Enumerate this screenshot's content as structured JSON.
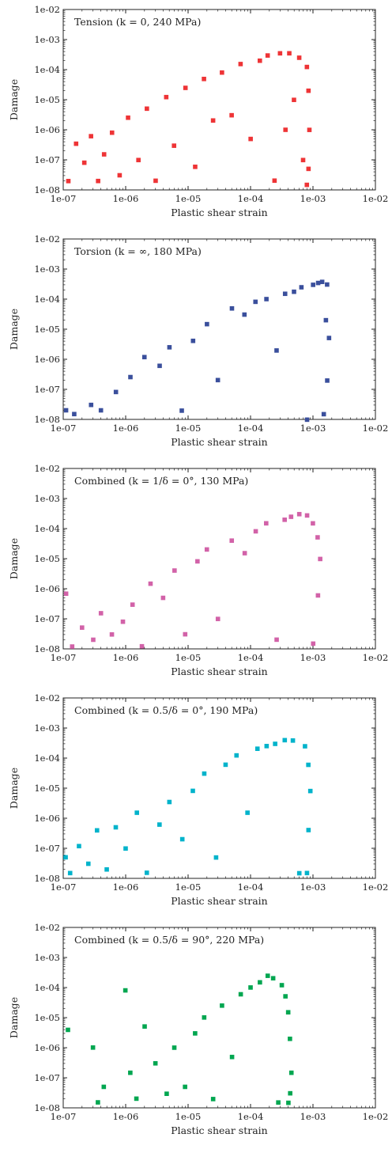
{
  "chart_data": [
    {
      "type": "scatter",
      "title": "Tension (k = 0, 240 MPa)",
      "xlabel": "Plastic shear strain",
      "ylabel": "Damage",
      "xscale": "log",
      "yscale": "log",
      "xlim": [
        1e-07,
        0.01
      ],
      "ylim": [
        1e-08,
        0.01
      ],
      "xticks": [
        "1e-07",
        "1e-06",
        "1e-05",
        "1e-04",
        "1e-03",
        "1e-02"
      ],
      "yticks": [
        "1e-08",
        "1e-07",
        "1e-06",
        "1e-05",
        "1e-04",
        "1e-03",
        "1e-02"
      ],
      "grid": false,
      "legend": "none",
      "color": "#ee3436",
      "marker": "square",
      "series": [
        {
          "x": [
            1.2e-07,
            1.6e-07,
            2.2e-07,
            2.8e-07,
            3.6e-07,
            4.5e-07,
            6e-07,
            8e-07,
            1.1e-06,
            1.6e-06,
            2.2e-06,
            3e-06,
            4.5e-06,
            6e-06,
            9e-06,
            1.3e-05,
            1.8e-05,
            2.5e-05,
            3.5e-05,
            5e-05,
            7e-05,
            0.0001,
            0.00014,
            0.00019,
            0.00024,
            0.0003,
            0.00036,
            0.00042,
            0.0005,
            0.0006,
            0.0007,
            0.0008,
            0.00085,
            0.00087,
            0.00085,
            0.0008
          ],
          "y": [
            2e-08,
            3.5e-07,
            8e-08,
            6e-07,
            2e-08,
            1.5e-07,
            8e-07,
            3e-08,
            2.5e-06,
            1e-07,
            5e-06,
            2e-08,
            1.2e-05,
            3e-07,
            2.5e-05,
            6e-08,
            5e-05,
            2e-06,
            8e-05,
            3e-06,
            0.00015,
            5e-07,
            0.0002,
            0.0003,
            2e-08,
            0.00035,
            1e-06,
            0.00035,
            1e-05,
            0.00025,
            1e-07,
            0.00012,
            2e-05,
            1e-06,
            5e-08,
            1.5e-08
          ]
        }
      ]
    },
    {
      "type": "scatter",
      "title": "Torsion (k = ∞, 180 MPa)",
      "xlabel": "Plastic shear strain",
      "ylabel": "Damage",
      "xscale": "log",
      "yscale": "log",
      "xlim": [
        1e-07,
        0.01
      ],
      "ylim": [
        1e-08,
        0.01
      ],
      "xticks": [
        "1e-07",
        "1e-06",
        "1e-05",
        "1e-04",
        "1e-03",
        "1e-02"
      ],
      "yticks": [
        "1e-08",
        "1e-07",
        "1e-06",
        "1e-05",
        "1e-04",
        "1e-03",
        "1e-02"
      ],
      "grid": false,
      "legend": "none",
      "color": "#3a4f9c",
      "marker": "square",
      "series": [
        {
          "x": [
            1.1e-07,
            1.5e-07,
            2.8e-07,
            4e-07,
            7e-07,
            1.2e-06,
            2e-06,
            3.5e-06,
            5e-06,
            8e-06,
            1.2e-05,
            2e-05,
            3e-05,
            5e-05,
            8e-05,
            0.00012,
            0.00018,
            0.00026,
            0.00036,
            0.0005,
            0.00065,
            0.0008,
            0.001,
            0.0012,
            0.0014,
            0.0016,
            0.0017,
            0.0018,
            0.0017,
            0.0015
          ],
          "y": [
            2e-08,
            1.5e-08,
            3e-08,
            2e-08,
            8e-08,
            2.5e-07,
            1.2e-06,
            6e-07,
            2.5e-06,
            2e-08,
            4e-06,
            1.5e-05,
            2e-07,
            5e-05,
            3e-05,
            8e-05,
            0.0001,
            2e-06,
            0.00015,
            0.00018,
            0.00025,
            1e-08,
            0.0003,
            0.00035,
            0.00038,
            2e-05,
            0.0003,
            5e-06,
            2e-07,
            1.5e-08
          ]
        }
      ]
    },
    {
      "type": "scatter",
      "title": "Combined (k = 1/δ = 0°, 130 MPa)",
      "xlabel": "Plastic shear strain",
      "ylabel": "Damage",
      "xscale": "log",
      "yscale": "log",
      "xlim": [
        1e-07,
        0.01
      ],
      "ylim": [
        1e-08,
        0.01
      ],
      "xticks": [
        "1e-07",
        "1e-06",
        "1e-05",
        "1e-04",
        "1e-03",
        "1e-02"
      ],
      "yticks": [
        "1e-08",
        "1e-07",
        "1e-06",
        "1e-05",
        "1e-04",
        "1e-03",
        "1e-02"
      ],
      "grid": false,
      "legend": "none",
      "color": "#d262a8",
      "marker": "square",
      "series": [
        {
          "x": [
            1.1e-07,
            1.4e-07,
            2e-07,
            3e-07,
            4e-07,
            6e-07,
            9e-07,
            1.3e-06,
            1.8e-06,
            2.5e-06,
            4e-06,
            6e-06,
            9e-06,
            1.4e-05,
            2e-05,
            3e-05,
            5e-05,
            8e-05,
            0.00012,
            0.00018,
            0.00026,
            0.00035,
            0.00045,
            0.0006,
            0.0008,
            0.001,
            0.0012,
            0.0013,
            0.0012,
            0.001
          ],
          "y": [
            7e-07,
            1.2e-08,
            5e-08,
            2e-08,
            1.5e-07,
            3e-08,
            8e-08,
            3e-07,
            1.2e-08,
            1.5e-06,
            5e-07,
            4e-06,
            3e-08,
            8e-06,
            2e-05,
            1e-07,
            4e-05,
            1.5e-05,
            8e-05,
            0.00015,
            2e-08,
            0.0002,
            0.00025,
            0.0003,
            0.00028,
            0.00015,
            5e-05,
            1e-05,
            6e-07,
            1.5e-08
          ]
        }
      ]
    },
    {
      "type": "scatter",
      "title": "Combined (k = 0.5/δ = 0°, 190 MPa)",
      "xlabel": "Plastic shear strain",
      "ylabel": "Damage",
      "xscale": "log",
      "yscale": "log",
      "xlim": [
        1e-07,
        0.01
      ],
      "ylim": [
        1e-08,
        0.01
      ],
      "xticks": [
        "1e-07",
        "1e-06",
        "1e-05",
        "1e-04",
        "1e-03",
        "1e-02"
      ],
      "yticks": [
        "1e-08",
        "1e-07",
        "1e-06",
        "1e-05",
        "1e-04",
        "1e-03",
        "1e-02"
      ],
      "grid": false,
      "legend": "none",
      "color": "#00b3cb",
      "marker": "square",
      "series": [
        {
          "x": [
            1.1e-07,
            1.3e-07,
            1.8e-07,
            2.5e-07,
            3.5e-07,
            5e-07,
            7e-07,
            1e-06,
            1.5e-06,
            2.2e-06,
            3.5e-06,
            5e-06,
            8e-06,
            1.2e-05,
            1.8e-05,
            2.8e-05,
            4e-05,
            6e-05,
            9e-05,
            0.00013,
            0.00018,
            0.00025,
            0.00035,
            0.00048,
            0.0006,
            0.00075,
            0.00085,
            0.0009,
            0.00085,
            0.0008
          ],
          "y": [
            5e-08,
            1.5e-08,
            1.2e-07,
            3e-08,
            4e-07,
            2e-08,
            5e-07,
            1e-07,
            1.5e-06,
            1.5e-08,
            6e-07,
            3.5e-06,
            2e-07,
            8e-06,
            3e-05,
            5e-08,
            6e-05,
            0.00012,
            1.5e-06,
            0.0002,
            0.00025,
            0.0003,
            0.0004,
            0.00038,
            1.5e-08,
            0.00025,
            6e-05,
            8e-06,
            4e-07,
            1.5e-08
          ]
        }
      ]
    },
    {
      "type": "scatter",
      "title": "Combined (k = 0.5/δ = 90°, 220 MPa)",
      "xlabel": "Plastic shear strain",
      "ylabel": "Damage",
      "xscale": "log",
      "yscale": "log",
      "xlim": [
        1e-07,
        0.01
      ],
      "ylim": [
        1e-08,
        0.01
      ],
      "xticks": [
        "1e-07",
        "1e-06",
        "1e-05",
        "1e-04",
        "1e-03",
        "1e-02"
      ],
      "yticks": [
        "1e-08",
        "1e-07",
        "1e-06",
        "1e-05",
        "1e-04",
        "1e-03",
        "1e-02"
      ],
      "grid": false,
      "legend": "none",
      "color": "#00a650",
      "marker": "square",
      "series": [
        {
          "x": [
            1.2e-07,
            3e-07,
            3.6e-07,
            4.5e-07,
            1e-06,
            1.2e-06,
            1.5e-06,
            2e-06,
            3e-06,
            4.5e-06,
            6e-06,
            9e-06,
            1.3e-05,
            1.8e-05,
            2.5e-05,
            3.5e-05,
            5e-05,
            7e-05,
            0.0001,
            0.00014,
            0.00019,
            0.00023,
            0.00028,
            0.00032,
            0.00036,
            0.0004,
            0.00043,
            0.00045,
            0.00043,
            0.0004
          ],
          "y": [
            4e-06,
            1e-06,
            1.5e-08,
            5e-08,
            8e-05,
            1.5e-07,
            2e-08,
            5e-06,
            3e-07,
            3e-08,
            1e-06,
            5e-08,
            3e-06,
            1e-05,
            2e-08,
            2.5e-05,
            5e-07,
            6e-05,
            0.0001,
            0.00015,
            0.00025,
            0.0002,
            1.5e-08,
            0.00012,
            5e-05,
            1.5e-05,
            2e-06,
            1.5e-07,
            3e-08,
            1.5e-08
          ]
        }
      ]
    }
  ]
}
